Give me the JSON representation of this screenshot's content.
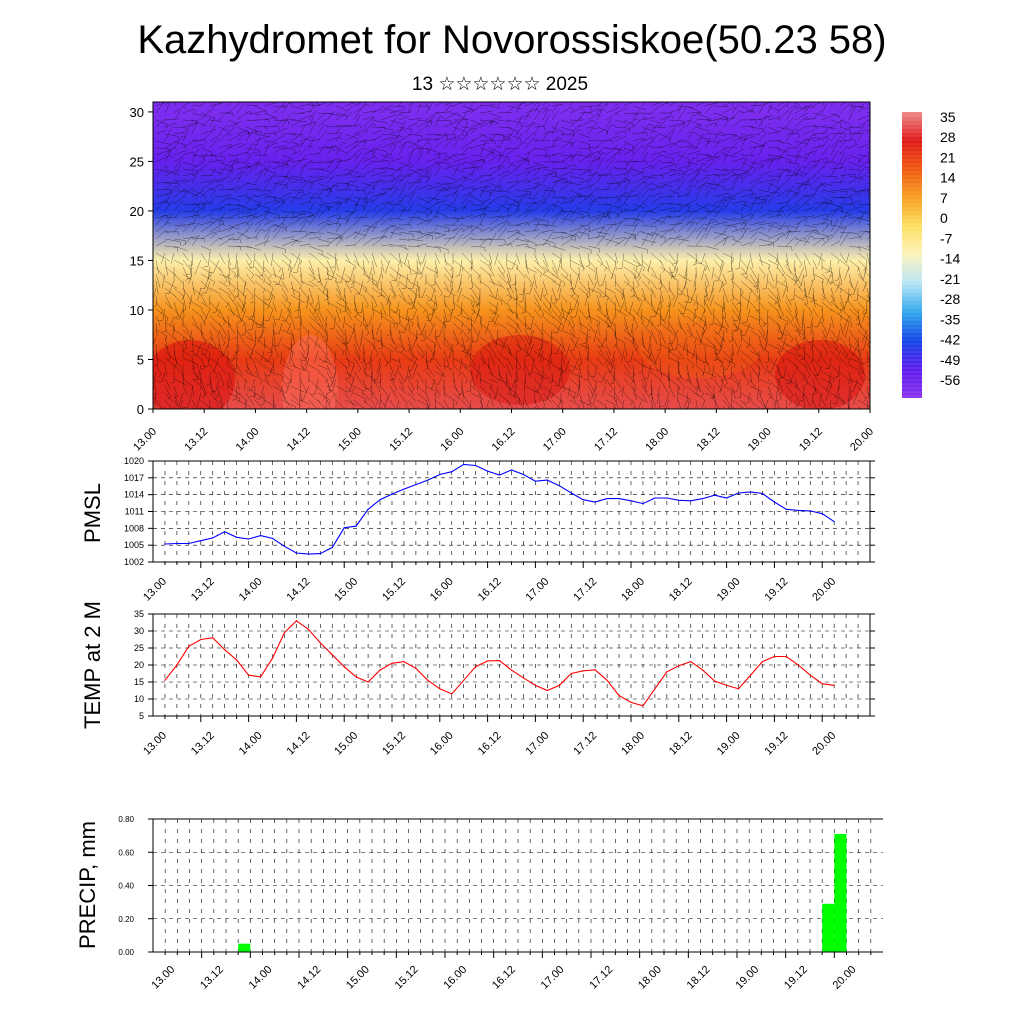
{
  "header": {
    "title": "Kazhydromet for Novorossiskoe(50.23 58)",
    "subtitle": "13 ☆☆☆☆☆☆ 2025"
  },
  "chart_data": [
    {
      "id": "cross-section",
      "type": "heatmap",
      "yticks": [
        "0",
        "5",
        "10",
        "15",
        "20",
        "25",
        "30"
      ],
      "ylim": [
        0,
        31
      ],
      "xticks": [
        "13.00",
        "13.12",
        "14.00",
        "14.12",
        "15.00",
        "15.12",
        "16.00",
        "16.12",
        "17.00",
        "17.12",
        "18.00",
        "18.12",
        "19.00",
        "19.12",
        "20.00"
      ],
      "colorbar_labels": [
        "35",
        "28",
        "21",
        "14",
        "7",
        "0",
        "-7",
        "-14",
        "-21",
        "-28",
        "-35",
        "-42",
        "-49",
        "-56"
      ],
      "colorscale": [
        "#ef8a8a",
        "#e01818",
        "#f05a10",
        "#f8a020",
        "#fde060",
        "#fdf4c0",
        "#b6e4f6",
        "#30a8ec",
        "#1446e8",
        "#5d1cec",
        "#8b34f0"
      ],
      "profile_heights": [
        0,
        5,
        10,
        15,
        20,
        25,
        30
      ],
      "profile_values": [
        33,
        23,
        10,
        -10,
        -45,
        -55,
        -60
      ],
      "overlay": "wind barbs"
    },
    {
      "id": "pmsl",
      "type": "line",
      "ylabel": "PMSL",
      "yticks": [
        "1002",
        "1005",
        "1008",
        "1011",
        "1014",
        "1017",
        "1020"
      ],
      "ylim": [
        1002,
        1020
      ],
      "xticks": [
        "13.00",
        "13.12",
        "14.00",
        "14.12",
        "15.00",
        "15.12",
        "16.00",
        "16.12",
        "17.00",
        "17.12",
        "18.00",
        "18.12",
        "19.00",
        "19.12",
        "20.00"
      ],
      "color": "#0000ff",
      "values": [
        1005.2,
        1005.3,
        1005.3,
        1005.8,
        1006.3,
        1007.4,
        1006.4,
        1006.1,
        1006.7,
        1006.2,
        1004.8,
        1003.6,
        1003.4,
        1003.5,
        1004.6,
        1008.1,
        1008.4,
        1011.4,
        1013.1,
        1014.1,
        1015.0,
        1015.8,
        1016.6,
        1017.6,
        1018.1,
        1019.4,
        1019.2,
        1018.2,
        1017.5,
        1018.4,
        1017.6,
        1016.4,
        1016.6,
        1015.6,
        1014.3,
        1013.1,
        1012.7,
        1013.3,
        1013.3,
        1012.9,
        1012.4,
        1013.4,
        1013.4,
        1013.0,
        1012.9,
        1013.3,
        1013.9,
        1013.4,
        1014.3,
        1014.5,
        1014.2,
        1012.7,
        1011.4,
        1011.2,
        1011.1,
        1010.6,
        1009.2
      ]
    },
    {
      "id": "temp",
      "type": "line",
      "ylabel": "TEMP at 2 M",
      "yticks": [
        "5",
        "10",
        "15",
        "20",
        "25",
        "30",
        "35"
      ],
      "ylim": [
        5,
        35
      ],
      "xticks": [
        "13.00",
        "13.12",
        "14.00",
        "14.12",
        "15.00",
        "15.12",
        "16.00",
        "16.12",
        "17.00",
        "17.12",
        "18.00",
        "18.12",
        "19.00",
        "19.12",
        "20.00"
      ],
      "color": "#ff0000",
      "values": [
        15.5,
        20,
        25.5,
        27.5,
        28,
        24.5,
        21.5,
        17,
        16.5,
        22,
        29.5,
        33,
        30.5,
        26.5,
        23,
        19.5,
        16.5,
        15,
        18.5,
        20.5,
        21,
        19,
        15.5,
        13,
        11.5,
        15.5,
        19.5,
        21.2,
        21.3,
        18.5,
        16.2,
        14,
        12.5,
        14,
        17.5,
        18.3,
        18.6,
        15.5,
        11,
        9,
        8,
        13,
        18,
        19.8,
        21,
        18.5,
        15.3,
        14,
        13,
        17,
        21,
        22.5,
        22.5,
        20,
        17,
        14.5,
        14
      ]
    },
    {
      "id": "precip",
      "type": "bar",
      "ylabel": "PRECIP, mm",
      "yticks": [
        "0.00",
        "0.20",
        "0.40",
        "0.60",
        "0.80"
      ],
      "ylim": [
        0,
        0.8
      ],
      "xticks": [
        "13.00",
        "13.12",
        "14.00",
        "14.12",
        "15.00",
        "15.12",
        "16.00",
        "16.12",
        "17.00",
        "17.12",
        "18.00",
        "18.12",
        "19.00",
        "19.12",
        "20.00"
      ],
      "color": "#00ff00",
      "bars": [
        {
          "x": 6.5,
          "value": 0.05
        },
        {
          "x": 54.5,
          "value": 0.29
        },
        {
          "x": 55.5,
          "value": 0.71
        }
      ]
    }
  ]
}
